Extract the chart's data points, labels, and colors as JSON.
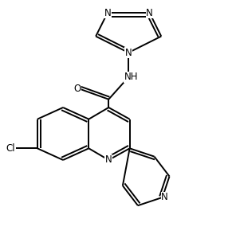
{
  "background_color": "#ffffff",
  "line_color": "#000000",
  "line_width": 1.4,
  "font_size": 8.5,
  "figsize": [
    2.96,
    3.14
  ],
  "dpi": 100,
  "xlim": [
    0,
    10
  ],
  "ylim": [
    0,
    10.6
  ]
}
